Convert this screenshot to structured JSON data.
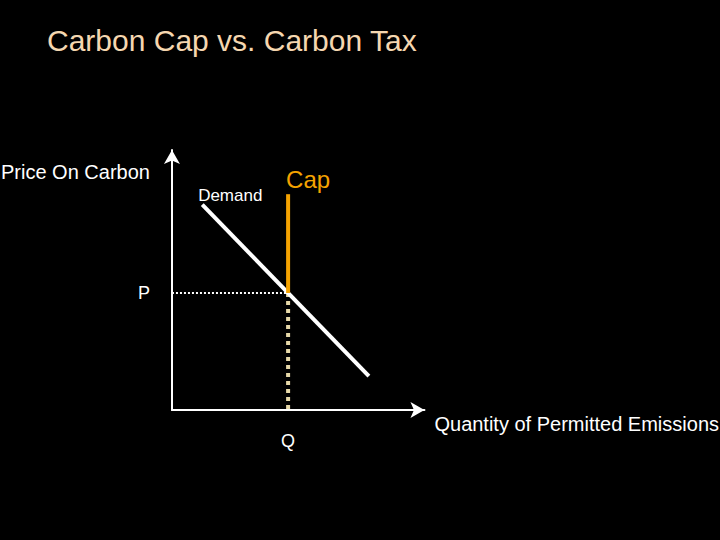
{
  "chart_data": {
    "type": "line",
    "title": "Carbon Cap vs. Carbon Tax",
    "x_label": "Quantity of Permitted Emissions",
    "y_label": "Price On Carbon",
    "xlim": [
      0,
      10
    ],
    "ylim": [
      0,
      10
    ],
    "xticks": [
      {
        "value": 4.6,
        "label": "Q"
      }
    ],
    "yticks": [
      {
        "value": 4.5,
        "label": "P"
      }
    ],
    "grid": false,
    "series": [
      {
        "name": "Demand",
        "color": "#ffffff",
        "line_style": "solid",
        "x": [
          1.2,
          7.8
        ],
        "values": [
          7.9,
          1.3
        ]
      },
      {
        "name": "Cap",
        "color": "#f5a300",
        "line_style": "solid",
        "x": [
          4.6,
          4.6
        ],
        "values": [
          8.3,
          4.5
        ]
      }
    ],
    "guides": [
      {
        "x": [
          0,
          4.6
        ],
        "values": [
          4.5,
          4.5
        ],
        "color": "#ffffff",
        "line_style": "dotted"
      },
      {
        "x": [
          4.6,
          4.6
        ],
        "values": [
          4.5,
          0
        ],
        "color": "#e6d8a8",
        "line_style": "dotted"
      }
    ]
  }
}
